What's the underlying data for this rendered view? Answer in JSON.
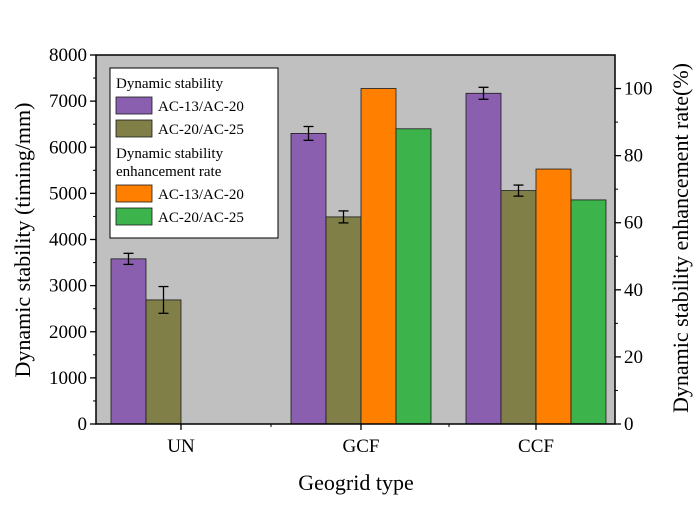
{
  "chart_data": {
    "type": "bar",
    "categories": [
      "UN",
      "GCF",
      "CCF"
    ],
    "xlabel": "Geogrid type",
    "ylabel": "Dynamic stability (timing/mm)",
    "y2label": "Dynamic stability enhancement rate(%)",
    "ylim": [
      0,
      8000
    ],
    "y2lim": [
      0,
      110
    ],
    "yticks": [
      0,
      1000,
      2000,
      3000,
      4000,
      5000,
      6000,
      7000,
      8000
    ],
    "y2ticks": [
      0,
      20,
      40,
      60,
      80,
      100
    ],
    "grid": false,
    "plot_background": "#c0c0c0",
    "legend_position": "top-left",
    "legend_groups": [
      {
        "title_lines": [
          "Dynamic stability"
        ],
        "entries": [
          "AC-13/AC-20",
          "AC-20/AC-25"
        ]
      },
      {
        "title_lines": [
          "Dynamic stability",
          "enhancement rate"
        ],
        "entries": [
          "AC-13/AC-20",
          "AC-20/AC-25"
        ]
      }
    ],
    "series": [
      {
        "name": "AC-13/AC-20",
        "group": "Dynamic stability",
        "axis": "left",
        "color": "#8a5fb0",
        "values": [
          3580,
          6300,
          7170
        ],
        "errors": [
          120,
          150,
          130
        ]
      },
      {
        "name": "AC-20/AC-25",
        "group": "Dynamic stability",
        "axis": "left",
        "color": "#7f7f47",
        "values": [
          2690,
          4490,
          5060
        ],
        "errors": [
          290,
          130,
          120
        ]
      },
      {
        "name": "AC-13/AC-20",
        "group": "Dynamic stability enhancement rate",
        "axis": "right",
        "color": "#ff8000",
        "values": [
          0,
          100,
          76
        ],
        "errors": null
      },
      {
        "name": "AC-20/AC-25",
        "group": "Dynamic stability enhancement rate",
        "axis": "right",
        "color": "#3cb44b",
        "values": [
          0,
          88,
          66.8
        ],
        "errors": null
      }
    ]
  }
}
